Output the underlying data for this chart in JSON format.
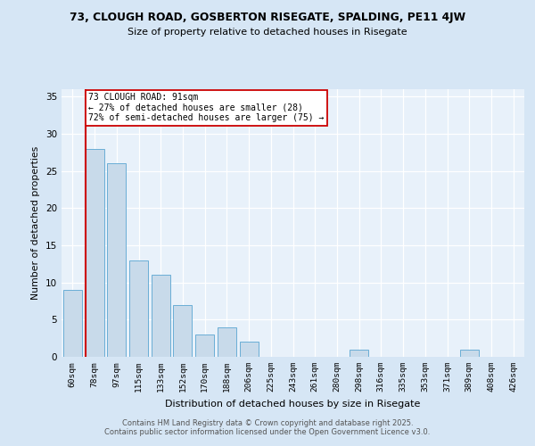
{
  "title1": "73, CLOUGH ROAD, GOSBERTON RISEGATE, SPALDING, PE11 4JW",
  "title2": "Size of property relative to detached houses in Risegate",
  "xlabel": "Distribution of detached houses by size in Risegate",
  "ylabel": "Number of detached properties",
  "categories": [
    "60sqm",
    "78sqm",
    "97sqm",
    "115sqm",
    "133sqm",
    "152sqm",
    "170sqm",
    "188sqm",
    "206sqm",
    "225sqm",
    "243sqm",
    "261sqm",
    "280sqm",
    "298sqm",
    "316sqm",
    "335sqm",
    "353sqm",
    "371sqm",
    "389sqm",
    "408sqm",
    "426sqm"
  ],
  "values": [
    9,
    28,
    26,
    13,
    11,
    7,
    3,
    4,
    2,
    0,
    0,
    0,
    0,
    1,
    0,
    0,
    0,
    0,
    1,
    0,
    0
  ],
  "bar_color": "#c8daea",
  "bar_edge_color": "#6aaed6",
  "background_color": "#d6e6f5",
  "plot_bg_color": "#e8f1fa",
  "vline_color": "#cc0000",
  "annotation_text": "73 CLOUGH ROAD: 91sqm\n← 27% of detached houses are smaller (28)\n72% of semi-detached houses are larger (75) →",
  "annotation_box_color": "#ffffff",
  "annotation_box_edge": "#cc0000",
  "ylim": [
    0,
    36
  ],
  "yticks": [
    0,
    5,
    10,
    15,
    20,
    25,
    30,
    35
  ],
  "footer_line1": "Contains HM Land Registry data © Crown copyright and database right 2025.",
  "footer_line2": "Contains public sector information licensed under the Open Government Licence v3.0."
}
